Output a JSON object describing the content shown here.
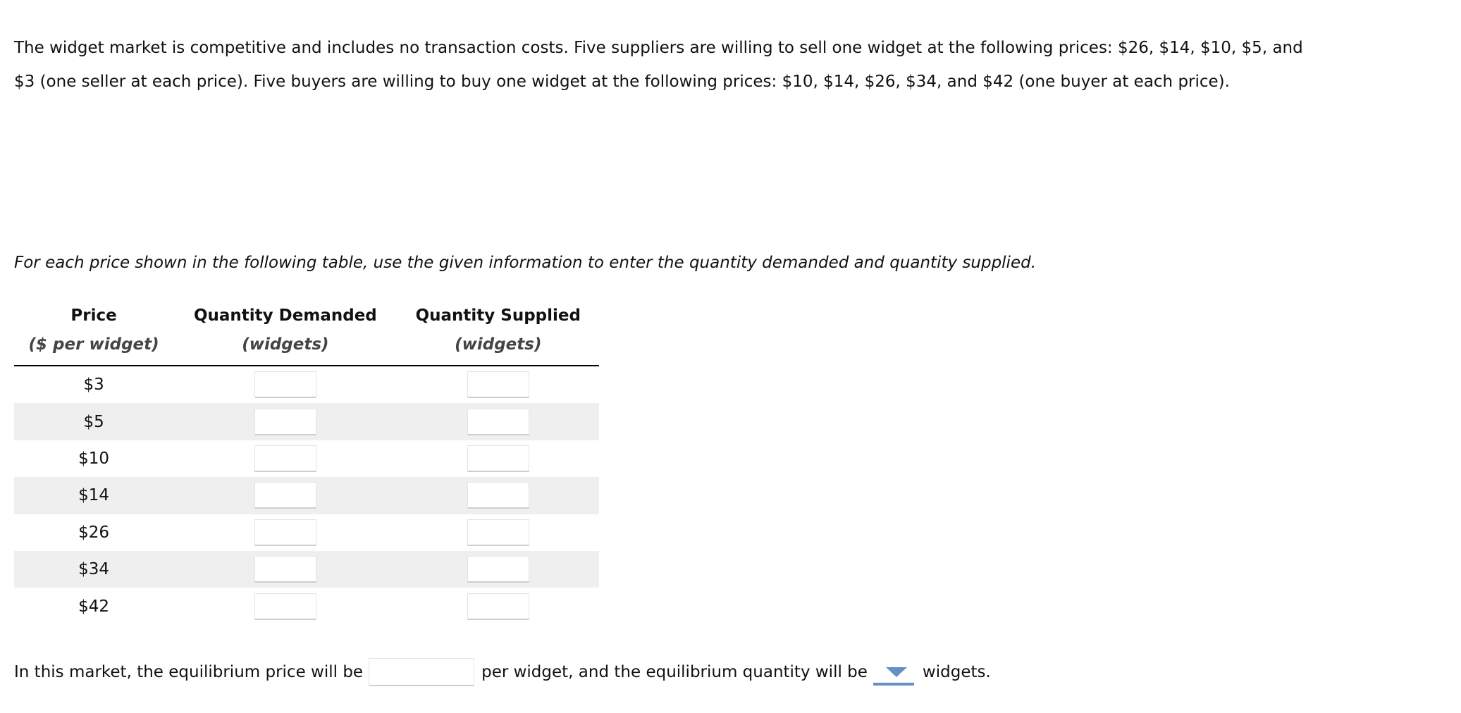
{
  "intro": "The widget market is competitive and includes no transaction costs. Five suppliers are willing to sell one widget at the following prices: $26, $14, $10, $5, and $3 (one seller at each price). Five buyers are willing to buy one widget at the following prices: $10, $14, $26, $34, and $42 (one buyer at each price).",
  "instruction": "For each price shown in the following table, use the given information to enter the quantity demanded and quantity supplied.",
  "table": {
    "headers": [
      "Price",
      "Quantity Demanded",
      "Quantity Supplied"
    ],
    "subheaders": [
      "($ per widget)",
      "(widgets)",
      "(widgets)"
    ],
    "prices": [
      "$3",
      "$5",
      "$10",
      "$14",
      "$26",
      "$34",
      "$42"
    ]
  },
  "bottom": {
    "before": "In this market, the equilibrium price will be",
    "middle": "per widget, and the equilibrium quantity will be",
    "after": "widgets.",
    "accent": "#6391c6"
  }
}
